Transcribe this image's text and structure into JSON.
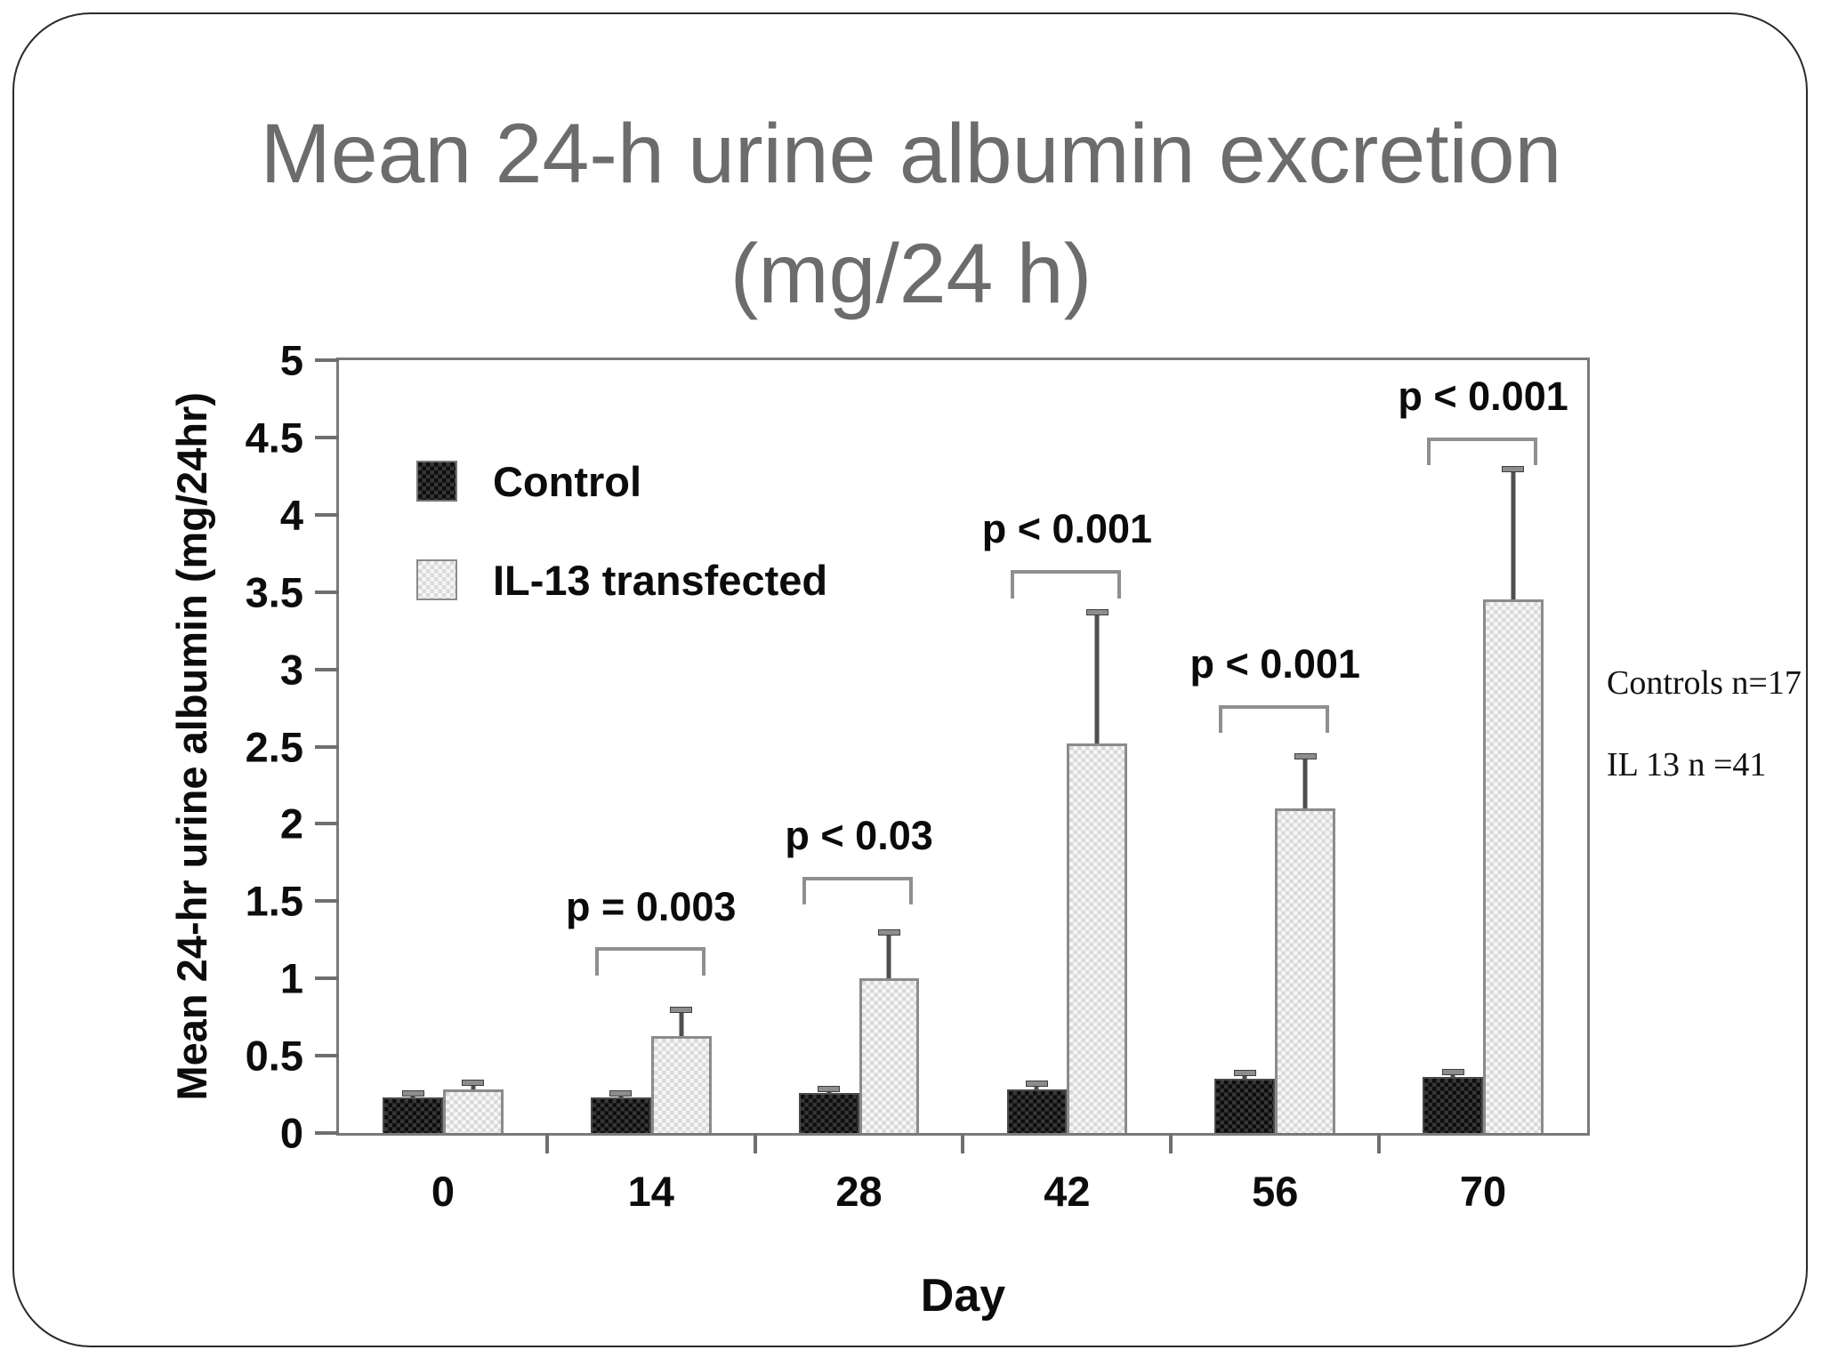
{
  "slide": {
    "title_line1": "Mean 24-h urine albumin excretion",
    "title_line2": "(mg/24 h)",
    "side_notes": [
      "Controls n=17",
      "IL 13 n =41"
    ]
  },
  "chart_data": {
    "type": "bar",
    "title": "Mean 24-h urine albumin excretion (mg/24 h)",
    "categories": [
      "0",
      "14",
      "28",
      "42",
      "56",
      "70"
    ],
    "series": [
      {
        "name": "Control",
        "values": [
          0.23,
          0.23,
          0.26,
          0.28,
          0.35,
          0.36
        ],
        "errors": [
          0.03,
          0.03,
          0.03,
          0.04,
          0.04,
          0.04
        ]
      },
      {
        "name": "IL-13 transfected",
        "values": [
          0.28,
          0.63,
          1.0,
          2.52,
          2.1,
          3.45
        ],
        "errors": [
          0.05,
          0.17,
          0.3,
          0.85,
          0.34,
          0.85
        ]
      }
    ],
    "annotations": [
      {
        "category": "14",
        "text": "p = 0.003",
        "bracket_y": 1.2
      },
      {
        "category": "28",
        "text": "p < 0.03",
        "bracket_y": 1.66
      },
      {
        "category": "42",
        "text": "p < 0.001",
        "bracket_y": 3.64
      },
      {
        "category": "56",
        "text": "p < 0.001",
        "bracket_y": 2.77
      },
      {
        "category": "70",
        "text": "p < 0.001",
        "bracket_y": 4.5
      }
    ],
    "xlabel": "Day",
    "ylabel": "Mean 24-hr urine albumin (mg/24hr)",
    "ylim": [
      0,
      5
    ],
    "ytick_step": 0.5,
    "grid": false,
    "legend_position": "upper-left-inside",
    "colors": {
      "control_bar": "#151515",
      "il13_bar": "#e9e9e9",
      "axis": "#7a7a7a",
      "title_text": "#6c6c6c",
      "error_bar": "#4f4f4f",
      "bracket": "#8f8f8f"
    }
  }
}
